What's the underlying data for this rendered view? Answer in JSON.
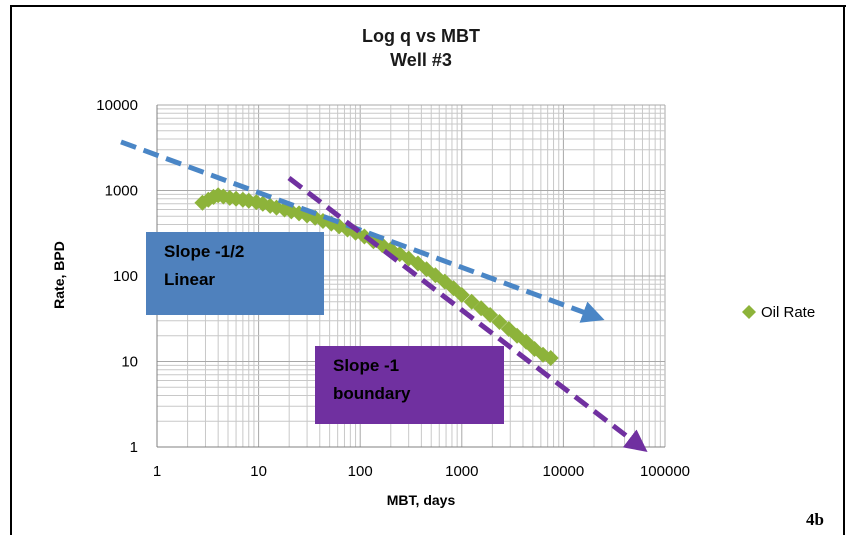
{
  "chart_data": {
    "type": "scatter",
    "title": "Log q vs MBT",
    "subtitle": "Well #3",
    "xlabel": "MBT, days",
    "ylabel": "Rate, BPD",
    "x_scale": "log",
    "y_scale": "log",
    "xlim": [
      1,
      100000
    ],
    "ylim": [
      1,
      10000
    ],
    "x_ticks": [
      "1",
      "10",
      "100",
      "1000",
      "10000",
      "100000"
    ],
    "y_ticks": [
      "1",
      "10",
      "100",
      "1000",
      "10000"
    ],
    "grid": true,
    "legend_position": "right",
    "colors": {
      "series": "#8DB33A",
      "linear_line": "#4A86C6",
      "boundary_line": "#7030A0",
      "linear_box": "#4F81BD",
      "boundary_box": "#7030A0",
      "grid": "#C8C8C8"
    },
    "series": [
      {
        "name": "Oil Rate",
        "points": [
          [
            2.8,
            720
          ],
          [
            3.2,
            780
          ],
          [
            3.6,
            840
          ],
          [
            4.0,
            880
          ],
          [
            4.5,
            850
          ],
          [
            5.2,
            820
          ],
          [
            6.0,
            800
          ],
          [
            7.0,
            780
          ],
          [
            8.0,
            760
          ],
          [
            9.5,
            730
          ],
          [
            11,
            700
          ],
          [
            13,
            660
          ],
          [
            15,
            630
          ],
          [
            18,
            600
          ],
          [
            21,
            570
          ],
          [
            25,
            540
          ],
          [
            30,
            510
          ],
          [
            36,
            480
          ],
          [
            43,
            440
          ],
          [
            52,
            410
          ],
          [
            62,
            380
          ],
          [
            75,
            350
          ],
          [
            90,
            320
          ],
          [
            110,
            290
          ],
          [
            135,
            255
          ],
          [
            165,
            230
          ],
          [
            200,
            205
          ],
          [
            245,
            180
          ],
          [
            300,
            160
          ],
          [
            370,
            140
          ],
          [
            450,
            120
          ],
          [
            550,
            102
          ],
          [
            680,
            86
          ],
          [
            830,
            72
          ],
          [
            1000,
            60
          ],
          [
            1250,
            50
          ],
          [
            1550,
            42
          ],
          [
            1900,
            35
          ],
          [
            2350,
            29
          ],
          [
            2900,
            24
          ],
          [
            3500,
            20
          ],
          [
            4300,
            17
          ],
          [
            5200,
            14
          ],
          [
            6300,
            12
          ],
          [
            7500,
            11
          ]
        ]
      }
    ],
    "trend_lines": [
      {
        "name": "linear",
        "x": [
          1,
          20000
        ],
        "y": [
          3700,
          34
        ]
      },
      {
        "name": "boundary",
        "x": [
          45,
          55000
        ],
        "y": [
          1400,
          1.05
        ]
      }
    ],
    "annotations": [
      {
        "id": "linear-box",
        "lines": [
          "Slope -1/2",
          "Linear"
        ]
      },
      {
        "id": "boundary-box",
        "lines": [
          "Slope -1",
          "boundary"
        ]
      }
    ],
    "panel_label": "4b"
  }
}
